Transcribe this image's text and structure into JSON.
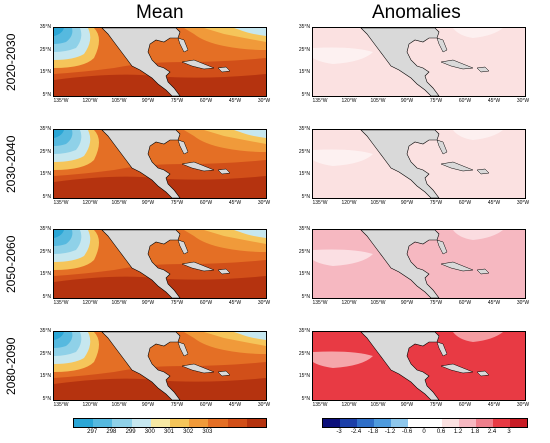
{
  "titles": {
    "mean": "Mean",
    "anomalies": "Anomalies"
  },
  "rows": [
    {
      "label": "2020-2030",
      "anomaly_fill": "#fbe1e1"
    },
    {
      "label": "2030-2040",
      "anomaly_fill": "#fbe1e1"
    },
    {
      "label": "2050-2060",
      "anomaly_fill": "#f6b8c1"
    },
    {
      "label": "2080-2090",
      "anomaly_fill": "#e83a44"
    }
  ],
  "lat_ticks": [
    "35°N",
    "25°N",
    "15°N",
    "5°N"
  ],
  "lon_ticks": [
    "135°W",
    "120°W",
    "105°W",
    "90°W",
    "75°W",
    "60°W",
    "45°W",
    "30°W"
  ],
  "mean_colorbar": {
    "labels": [
      "297",
      "298",
      "299",
      "300",
      "301",
      "302",
      "303"
    ],
    "colors": [
      "#2aa6d6",
      "#56b9df",
      "#8fd1e8",
      "#c6e7ef",
      "#f7e9a4",
      "#f5c55a",
      "#f09a3a",
      "#e46f25",
      "#d14f19",
      "#b5330f"
    ]
  },
  "anom_colorbar": {
    "labels": [
      "-3",
      "-2.4",
      "-1.8",
      "-1.2",
      "-0.6",
      "0",
      "0.6",
      "1.2",
      "1.8",
      "2.4",
      "3"
    ],
    "colors": [
      "#0b0f7a",
      "#1c3fa8",
      "#2f6fc8",
      "#4e9bde",
      "#8ec7ec",
      "#ffffff",
      "#ffffff",
      "#fbe1e1",
      "#f6b8c1",
      "#ee7f8c",
      "#e83a44",
      "#c81c25"
    ]
  }
}
